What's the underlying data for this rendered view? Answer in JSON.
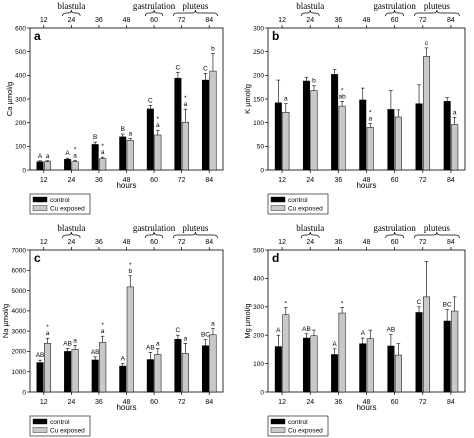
{
  "colors": {
    "control": "#000000",
    "cu": "#c8c8c8",
    "axis": "#000000"
  },
  "chart_data": [
    {
      "type": "bar",
      "panel": "a",
      "ylabel": "Ca µmol/g",
      "xlabel": "hours",
      "ylim": [
        0,
        600
      ],
      "yticks": [
        "0",
        "100",
        "200",
        "300",
        "400",
        "500",
        "600"
      ],
      "categories": [
        "12",
        "24",
        "36",
        "48",
        "60",
        "72",
        "84"
      ],
      "top_ticks": [
        "12",
        "24",
        "36",
        "48",
        "60",
        "72",
        "84"
      ],
      "stages": [
        "blastula",
        "gastrulation",
        "pluteus"
      ],
      "legend": [
        "control",
        "Cu exposed"
      ],
      "series": [
        {
          "name": "control",
          "values": [
            35,
            45,
            108,
            140,
            258,
            388,
            380
          ],
          "err": [
            4,
            5,
            10,
            12,
            15,
            25,
            28
          ],
          "labels": [
            "A",
            "A",
            "B",
            "B",
            "C",
            "C",
            "C"
          ]
        },
        {
          "name": "Cu exposed",
          "values": [
            35,
            35,
            48,
            125,
            148,
            202,
            418
          ],
          "err": [
            4,
            5,
            6,
            8,
            20,
            55,
            75
          ],
          "labels": [
            "a",
            "a",
            "a",
            "a",
            "a",
            "a",
            "b"
          ],
          "marks": [
            "",
            "*",
            "*",
            "",
            "*",
            "*",
            ""
          ]
        }
      ]
    },
    {
      "type": "bar",
      "panel": "b",
      "ylabel": "K µmol/g",
      "xlabel": "hours",
      "ylim": [
        0,
        300
      ],
      "yticks": [
        "0",
        "50",
        "100",
        "150",
        "200",
        "250",
        "300"
      ],
      "categories": [
        "12",
        "24",
        "36",
        "48",
        "60",
        "72",
        "84"
      ],
      "top_ticks": [
        "12",
        "24",
        "36",
        "48",
        "60",
        "72",
        "84"
      ],
      "stages": [
        "blastula",
        "gastrulation",
        "pluteus"
      ],
      "legend": [
        "control",
        "Cu exposed"
      ],
      "series": [
        {
          "name": "control",
          "values": [
            142,
            188,
            202,
            148,
            128,
            140,
            145
          ],
          "err": [
            48,
            8,
            10,
            25,
            40,
            40,
            8
          ],
          "labels": [
            "",
            "",
            "",
            "",
            "",
            "",
            ""
          ]
        },
        {
          "name": "Cu exposed",
          "values": [
            122,
            168,
            135,
            90,
            112,
            240,
            96
          ],
          "err": [
            18,
            10,
            10,
            8,
            15,
            18,
            15
          ],
          "labels": [
            "a",
            "b",
            "ab",
            "a",
            "",
            "c",
            "a"
          ],
          "marks": [
            "",
            "",
            "*",
            "*",
            "",
            "",
            ""
          ]
        }
      ]
    },
    {
      "type": "bar",
      "panel": "c",
      "ylabel": "Na µmol/g",
      "xlabel": "hours",
      "ylim": [
        0,
        7000
      ],
      "yticks": [
        "0",
        "1000",
        "2000",
        "3000",
        "4000",
        "5000",
        "6000",
        "7000"
      ],
      "categories": [
        "12",
        "24",
        "36",
        "48",
        "60",
        "72",
        "84"
      ],
      "top_ticks": [
        "12",
        "24",
        "36",
        "48",
        "60",
        "72",
        "84"
      ],
      "stages": [
        "blastula",
        "gastrulation",
        "pluteus"
      ],
      "legend": [
        "control",
        "Cu exposed"
      ],
      "series": [
        {
          "name": "control",
          "values": [
            1450,
            2000,
            1580,
            1280,
            1600,
            2600,
            2280
          ],
          "err": [
            120,
            150,
            150,
            120,
            350,
            200,
            300
          ],
          "labels": [
            "AB",
            "AB",
            "AB",
            "A",
            "AB",
            "C",
            "BC"
          ]
        },
        {
          "name": "Cu exposed",
          "values": [
            2400,
            2100,
            2450,
            5180,
            1850,
            1900,
            2820
          ],
          "err": [
            250,
            200,
            300,
            550,
            300,
            500,
            300
          ],
          "labels": [
            "a",
            "a",
            "a",
            "b",
            "a",
            "a",
            "a"
          ],
          "marks": [
            "*",
            "",
            "*",
            "*",
            "",
            "",
            ""
          ]
        }
      ]
    },
    {
      "type": "bar",
      "panel": "d",
      "ylabel": "Mg µmol/g",
      "xlabel": "hours",
      "ylim": [
        0,
        500
      ],
      "yticks": [
        "0",
        "100",
        "200",
        "300",
        "400",
        "500"
      ],
      "categories": [
        "12",
        "24",
        "36",
        "48",
        "60",
        "72",
        "84"
      ],
      "top_ticks": [
        "12",
        "24",
        "36",
        "48",
        "60",
        "72",
        "84"
      ],
      "stages": [
        "blastula",
        "gastrulation",
        "pluteus"
      ],
      "legend": [
        "control",
        "Cu exposed"
      ],
      "series": [
        {
          "name": "control",
          "values": [
            160,
            190,
            132,
            170,
            162,
            280,
            250
          ],
          "err": [
            40,
            15,
            20,
            20,
            40,
            20,
            40
          ],
          "labels": [
            "A",
            "AB",
            "A",
            "A",
            "AB",
            "C",
            "BC"
          ]
        },
        {
          "name": "Cu exposed",
          "values": [
            272,
            198,
            278,
            188,
            130,
            335,
            285
          ],
          "err": [
            25,
            20,
            20,
            30,
            40,
            125,
            50
          ],
          "labels": [
            "",
            "",
            "",
            "",
            "",
            "",
            ""
          ],
          "marks": [
            "*",
            "",
            "*",
            "",
            "",
            "",
            ""
          ]
        }
      ]
    }
  ]
}
